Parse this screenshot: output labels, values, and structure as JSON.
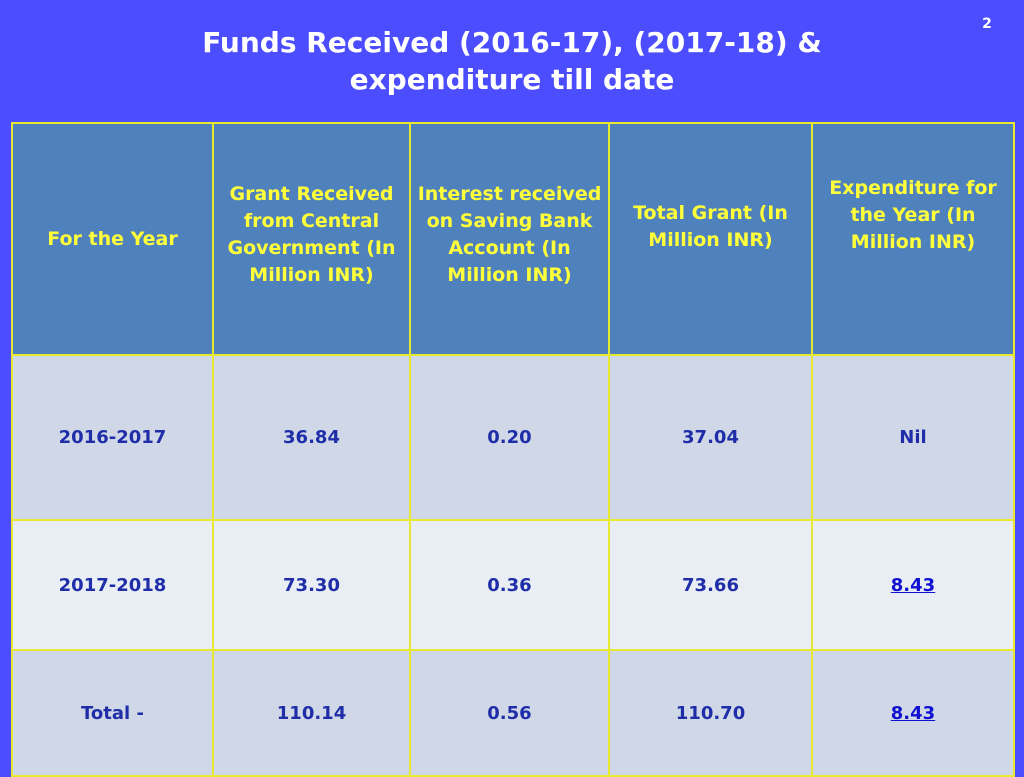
{
  "slide_number": "2",
  "title": {
    "line1": "Funds Received (2016-17), (2017-18) &",
    "line2": "expenditure till date"
  },
  "table": {
    "headers": [
      "For the Year",
      "Grant Received from Central Government (In Million INR)",
      "Interest received on Saving  Bank Account (In Million INR)",
      "Total  Grant (In Million INR)",
      "Expenditure for the Year (In Million INR)"
    ],
    "rows": [
      [
        "2016-2017",
        "36.84",
        "0.20",
        "37.04",
        "Nil"
      ],
      [
        "2017-2018",
        "73.30",
        "0.36",
        "73.66",
        "8.43"
      ],
      [
        "Total  -",
        "110.14",
        "0.56",
        "110.70",
        "8.43"
      ]
    ]
  },
  "colors": {
    "background": "#4b4dff",
    "header_fill": "#4f81bd",
    "header_text": "#ffff3a",
    "cell_text": "#1f2ea8",
    "border": "#e8e830"
  }
}
